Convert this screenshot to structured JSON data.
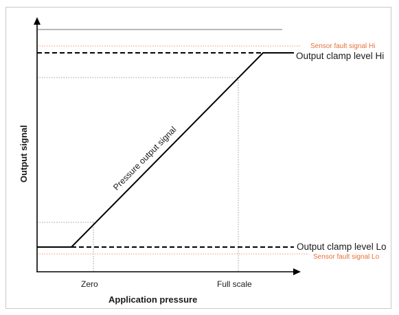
{
  "diagram": {
    "y_axis_label": "Output signal",
    "x_axis_label": "Application pressure",
    "signal_label": "Pressure output signal",
    "levels": {
      "fault_hi": "Sensor fault signal Hi",
      "clamp_hi": "Output clamp level Hi",
      "clamp_lo": "Output clamp level Lo",
      "fault_lo": "Sensor fault signal Lo"
    },
    "x_ticks": {
      "zero": "Zero",
      "full_scale": "Full scale"
    }
  },
  "colors": {
    "line": "#000000",
    "fault": "#f0956a",
    "guide": "#9a9a9a",
    "frame": "#c8c8c8"
  }
}
